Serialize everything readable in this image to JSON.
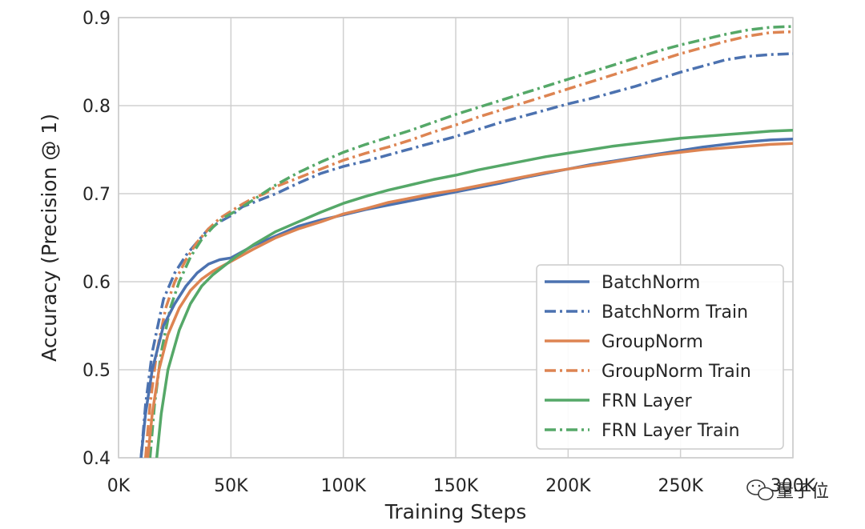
{
  "chart_data": {
    "type": "line",
    "title": "",
    "xlabel": "Training Steps",
    "ylabel": "Accuracy (Precision @ 1)",
    "xlim": [
      0,
      300000
    ],
    "ylim": [
      0.4,
      0.9
    ],
    "grid": true,
    "legend_position": "bottom-right",
    "x_ticks": [
      0,
      50000,
      100000,
      150000,
      200000,
      250000,
      300000
    ],
    "x_tick_labels": [
      "0K",
      "50K",
      "100K",
      "150K",
      "200K",
      "250K",
      "300K"
    ],
    "y_ticks": [
      0.4,
      0.5,
      0.6,
      0.7,
      0.8,
      0.9
    ],
    "y_tick_labels": [
      "0.4",
      "0.5",
      "0.6",
      "0.7",
      "0.8",
      "0.9"
    ],
    "series": [
      {
        "name": "BatchNorm",
        "color": "#4C72B0",
        "style": "solid",
        "points": [
          [
            10000,
            0.4
          ],
          [
            12000,
            0.45
          ],
          [
            15000,
            0.5
          ],
          [
            20000,
            0.55
          ],
          [
            25000,
            0.575
          ],
          [
            30000,
            0.595
          ],
          [
            35000,
            0.61
          ],
          [
            40000,
            0.62
          ],
          [
            45000,
            0.625
          ],
          [
            50000,
            0.627
          ],
          [
            60000,
            0.641
          ],
          [
            70000,
            0.652
          ],
          [
            80000,
            0.663
          ],
          [
            90000,
            0.67
          ],
          [
            100000,
            0.676
          ],
          [
            110000,
            0.682
          ],
          [
            120000,
            0.687
          ],
          [
            130000,
            0.692
          ],
          [
            140000,
            0.697
          ],
          [
            150000,
            0.702
          ],
          [
            160000,
            0.707
          ],
          [
            170000,
            0.712
          ],
          [
            180000,
            0.718
          ],
          [
            190000,
            0.723
          ],
          [
            200000,
            0.728
          ],
          [
            210000,
            0.733
          ],
          [
            220000,
            0.737
          ],
          [
            230000,
            0.741
          ],
          [
            240000,
            0.745
          ],
          [
            250000,
            0.749
          ],
          [
            260000,
            0.753
          ],
          [
            270000,
            0.756
          ],
          [
            280000,
            0.759
          ],
          [
            290000,
            0.761
          ],
          [
            300000,
            0.762
          ]
        ]
      },
      {
        "name": "BatchNorm Train",
        "color": "#4C72B0",
        "style": "dashdot",
        "points": [
          [
            10000,
            0.4
          ],
          [
            12000,
            0.46
          ],
          [
            15000,
            0.52
          ],
          [
            20000,
            0.58
          ],
          [
            25000,
            0.61
          ],
          [
            30000,
            0.63
          ],
          [
            35000,
            0.645
          ],
          [
            40000,
            0.66
          ],
          [
            45000,
            0.668
          ],
          [
            50000,
            0.675
          ],
          [
            55000,
            0.685
          ],
          [
            60000,
            0.69
          ],
          [
            65000,
            0.695
          ],
          [
            70000,
            0.7
          ],
          [
            80000,
            0.712
          ],
          [
            90000,
            0.723
          ],
          [
            100000,
            0.731
          ],
          [
            110000,
            0.737
          ],
          [
            120000,
            0.744
          ],
          [
            130000,
            0.751
          ],
          [
            140000,
            0.758
          ],
          [
            150000,
            0.765
          ],
          [
            160000,
            0.773
          ],
          [
            170000,
            0.781
          ],
          [
            180000,
            0.788
          ],
          [
            190000,
            0.795
          ],
          [
            200000,
            0.802
          ],
          [
            210000,
            0.808
          ],
          [
            220000,
            0.815
          ],
          [
            230000,
            0.822
          ],
          [
            240000,
            0.83
          ],
          [
            250000,
            0.838
          ],
          [
            260000,
            0.845
          ],
          [
            270000,
            0.852
          ],
          [
            280000,
            0.856
          ],
          [
            290000,
            0.858
          ],
          [
            300000,
            0.859
          ]
        ]
      },
      {
        "name": "GroupNorm",
        "color": "#DD8452",
        "style": "solid",
        "points": [
          [
            13000,
            0.4
          ],
          [
            15000,
            0.45
          ],
          [
            18000,
            0.5
          ],
          [
            22000,
            0.54
          ],
          [
            27000,
            0.57
          ],
          [
            32000,
            0.59
          ],
          [
            37000,
            0.603
          ],
          [
            42000,
            0.612
          ],
          [
            50000,
            0.623
          ],
          [
            60000,
            0.637
          ],
          [
            70000,
            0.65
          ],
          [
            80000,
            0.66
          ],
          [
            90000,
            0.668
          ],
          [
            100000,
            0.677
          ],
          [
            110000,
            0.683
          ],
          [
            120000,
            0.69
          ],
          [
            130000,
            0.695
          ],
          [
            140000,
            0.7
          ],
          [
            150000,
            0.704
          ],
          [
            160000,
            0.709
          ],
          [
            170000,
            0.714
          ],
          [
            180000,
            0.719
          ],
          [
            190000,
            0.724
          ],
          [
            200000,
            0.728
          ],
          [
            210000,
            0.732
          ],
          [
            220000,
            0.736
          ],
          [
            230000,
            0.74
          ],
          [
            240000,
            0.744
          ],
          [
            250000,
            0.747
          ],
          [
            260000,
            0.75
          ],
          [
            270000,
            0.752
          ],
          [
            280000,
            0.754
          ],
          [
            290000,
            0.756
          ],
          [
            300000,
            0.757
          ]
        ]
      },
      {
        "name": "GroupNorm Train",
        "color": "#DD8452",
        "style": "dashdot",
        "points": [
          [
            12000,
            0.4
          ],
          [
            14000,
            0.46
          ],
          [
            17000,
            0.52
          ],
          [
            21000,
            0.57
          ],
          [
            25000,
            0.6
          ],
          [
            30000,
            0.625
          ],
          [
            35000,
            0.645
          ],
          [
            40000,
            0.66
          ],
          [
            45000,
            0.672
          ],
          [
            50000,
            0.68
          ],
          [
            55000,
            0.688
          ],
          [
            60000,
            0.695
          ],
          [
            65000,
            0.7
          ],
          [
            70000,
            0.708
          ],
          [
            80000,
            0.718
          ],
          [
            90000,
            0.728
          ],
          [
            100000,
            0.738
          ],
          [
            110000,
            0.746
          ],
          [
            120000,
            0.753
          ],
          [
            130000,
            0.761
          ],
          [
            140000,
            0.77
          ],
          [
            150000,
            0.778
          ],
          [
            160000,
            0.787
          ],
          [
            170000,
            0.795
          ],
          [
            180000,
            0.803
          ],
          [
            190000,
            0.811
          ],
          [
            200000,
            0.819
          ],
          [
            210000,
            0.827
          ],
          [
            220000,
            0.835
          ],
          [
            230000,
            0.843
          ],
          [
            240000,
            0.851
          ],
          [
            250000,
            0.859
          ],
          [
            260000,
            0.866
          ],
          [
            270000,
            0.873
          ],
          [
            280000,
            0.879
          ],
          [
            290000,
            0.883
          ],
          [
            300000,
            0.884
          ]
        ]
      },
      {
        "name": "FRN Layer",
        "color": "#55A868",
        "style": "solid",
        "points": [
          [
            17000,
            0.4
          ],
          [
            19000,
            0.45
          ],
          [
            22000,
            0.5
          ],
          [
            27000,
            0.545
          ],
          [
            32000,
            0.575
          ],
          [
            37000,
            0.595
          ],
          [
            42000,
            0.608
          ],
          [
            47000,
            0.618
          ],
          [
            52000,
            0.628
          ],
          [
            60000,
            0.642
          ],
          [
            70000,
            0.657
          ],
          [
            80000,
            0.668
          ],
          [
            90000,
            0.679
          ],
          [
            100000,
            0.689
          ],
          [
            110000,
            0.697
          ],
          [
            120000,
            0.704
          ],
          [
            130000,
            0.71
          ],
          [
            140000,
            0.716
          ],
          [
            150000,
            0.721
          ],
          [
            160000,
            0.727
          ],
          [
            170000,
            0.732
          ],
          [
            180000,
            0.737
          ],
          [
            190000,
            0.742
          ],
          [
            200000,
            0.746
          ],
          [
            210000,
            0.75
          ],
          [
            220000,
            0.754
          ],
          [
            230000,
            0.757
          ],
          [
            240000,
            0.76
          ],
          [
            250000,
            0.763
          ],
          [
            260000,
            0.765
          ],
          [
            270000,
            0.767
          ],
          [
            280000,
            0.769
          ],
          [
            290000,
            0.771
          ],
          [
            300000,
            0.772
          ]
        ]
      },
      {
        "name": "FRN Layer Train",
        "color": "#55A868",
        "style": "dashdot",
        "points": [
          [
            14000,
            0.4
          ],
          [
            16000,
            0.46
          ],
          [
            19000,
            0.52
          ],
          [
            23000,
            0.57
          ],
          [
            27000,
            0.6
          ],
          [
            32000,
            0.628
          ],
          [
            37000,
            0.648
          ],
          [
            42000,
            0.662
          ],
          [
            47000,
            0.673
          ],
          [
            52000,
            0.68
          ],
          [
            60000,
            0.693
          ],
          [
            70000,
            0.71
          ],
          [
            80000,
            0.724
          ],
          [
            90000,
            0.736
          ],
          [
            100000,
            0.747
          ],
          [
            110000,
            0.756
          ],
          [
            120000,
            0.764
          ],
          [
            130000,
            0.772
          ],
          [
            140000,
            0.781
          ],
          [
            150000,
            0.79
          ],
          [
            160000,
            0.798
          ],
          [
            170000,
            0.806
          ],
          [
            180000,
            0.814
          ],
          [
            190000,
            0.822
          ],
          [
            200000,
            0.83
          ],
          [
            210000,
            0.838
          ],
          [
            220000,
            0.846
          ],
          [
            230000,
            0.854
          ],
          [
            240000,
            0.862
          ],
          [
            250000,
            0.869
          ],
          [
            260000,
            0.875
          ],
          [
            270000,
            0.881
          ],
          [
            280000,
            0.886
          ],
          [
            290000,
            0.889
          ],
          [
            300000,
            0.89
          ]
        ]
      }
    ]
  },
  "watermark": {
    "text": "量子位",
    "icon": "wechat-icon"
  }
}
